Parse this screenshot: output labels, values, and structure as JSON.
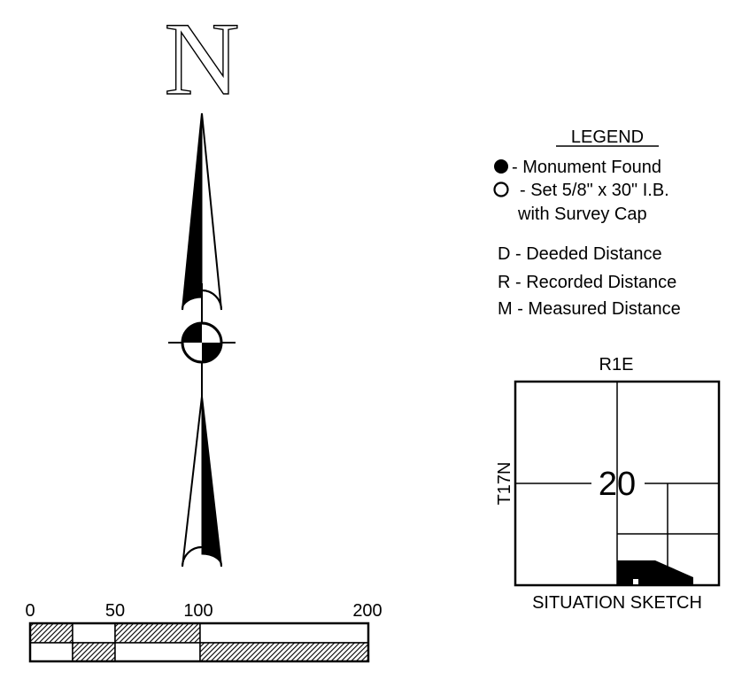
{
  "north_arrow": {
    "letter": "N"
  },
  "legend": {
    "title": "LEGEND",
    "items": [
      {
        "symbol": "filled-circle",
        "text": "- Monument Found"
      },
      {
        "symbol": "open-circle",
        "text": "- Set 5/8\" x 30\" I.B."
      },
      {
        "symbol": "",
        "text": "with Survey Cap"
      },
      {
        "symbol": "",
        "text": "D - Deeded Distance"
      },
      {
        "symbol": "",
        "text": "R - Recorded Distance"
      },
      {
        "symbol": "",
        "text": "M - Measured Distance"
      }
    ]
  },
  "situation_sketch": {
    "range_label": "R1E",
    "township_label": "T17N",
    "section_number": "20",
    "caption": "SITUATION SKETCH"
  },
  "scale_bar": {
    "labels": [
      "0",
      "50",
      "100",
      "200"
    ]
  }
}
